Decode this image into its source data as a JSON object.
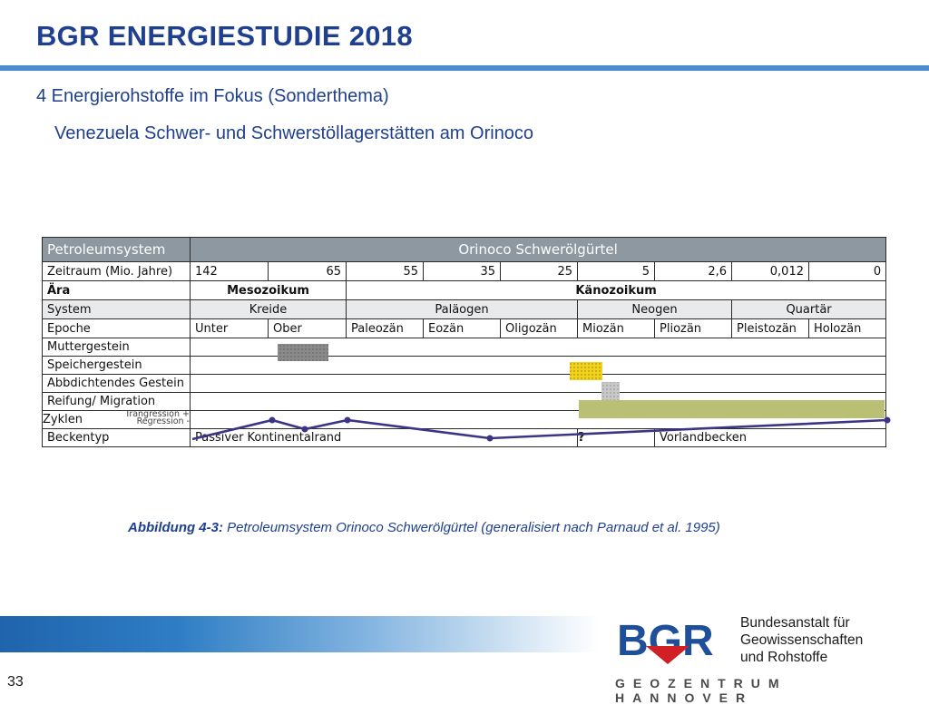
{
  "header": {
    "title": "BGR ENERGIESTUDIE 2018",
    "section": "4 Energierohstoffe im Fokus (Sonderthema)",
    "subtitle": "Venezuela Schwer- und Schwerstöllagerstätten am Orinoco"
  },
  "table": {
    "header_label": "Petroleumsystem",
    "header_title": "Orinoco Schwerölgürtel",
    "zeitraum_label": "Zeitraum (Mio. Jahre)",
    "zeitraum_values": [
      "142",
      "65",
      "55",
      "35",
      "25",
      "5",
      "2,6",
      "0,012",
      "0"
    ],
    "aera_label": "Ära",
    "aera_values": [
      "Mesozoikum",
      "Känozoikum"
    ],
    "system_label": "System",
    "system_values": [
      "Kreide",
      "Paläogen",
      "Neogen",
      "Quartär"
    ],
    "epoche_label": "Epoche",
    "epoche_values": [
      "Unter",
      "Ober",
      "Paleozän",
      "Eozän",
      "Oligozän",
      "Miozän",
      "Pliozän",
      "Pleistozän",
      "Holozän"
    ],
    "muttergestein_label": "Muttergestein",
    "speichergestein_label": "Speichergestein",
    "abdichtend_label": "Abbdichtendes Gestein",
    "reifung_label": "Reifung/ Migration",
    "zyklen_label": "Zyklen",
    "trangression_label": "Trangression +",
    "regression_label": "Regression -",
    "beckentyp_label": "Beckentyp",
    "beckentyp_left": "Passiver Kontinentalrand",
    "beckentyp_question": "?",
    "beckentyp_right": "Vorlandbecken"
  },
  "colors": {
    "muttergestein": "#8a8a8a",
    "speichergestein": "#f2d21c",
    "abdichtend": "#b8b8b8",
    "reifung": "#b9bf73",
    "zyklen_line": "#3b3585",
    "title": "#1f3f8f"
  },
  "caption": {
    "label": "Abbildung 4-3:",
    "text": " Petroleumsystem Orinoco Schwerölgürtel (generalisiert nach Parnaud et al. 1995)"
  },
  "footer": {
    "logo_text": "BGR",
    "institution_line1": "Bundesanstalt für",
    "institution_line2": "Geowissenschaften",
    "institution_line3": "und Rohstoffe",
    "geozentrum": "GEOZENTRUM HANNOVER",
    "page_number": "33"
  }
}
